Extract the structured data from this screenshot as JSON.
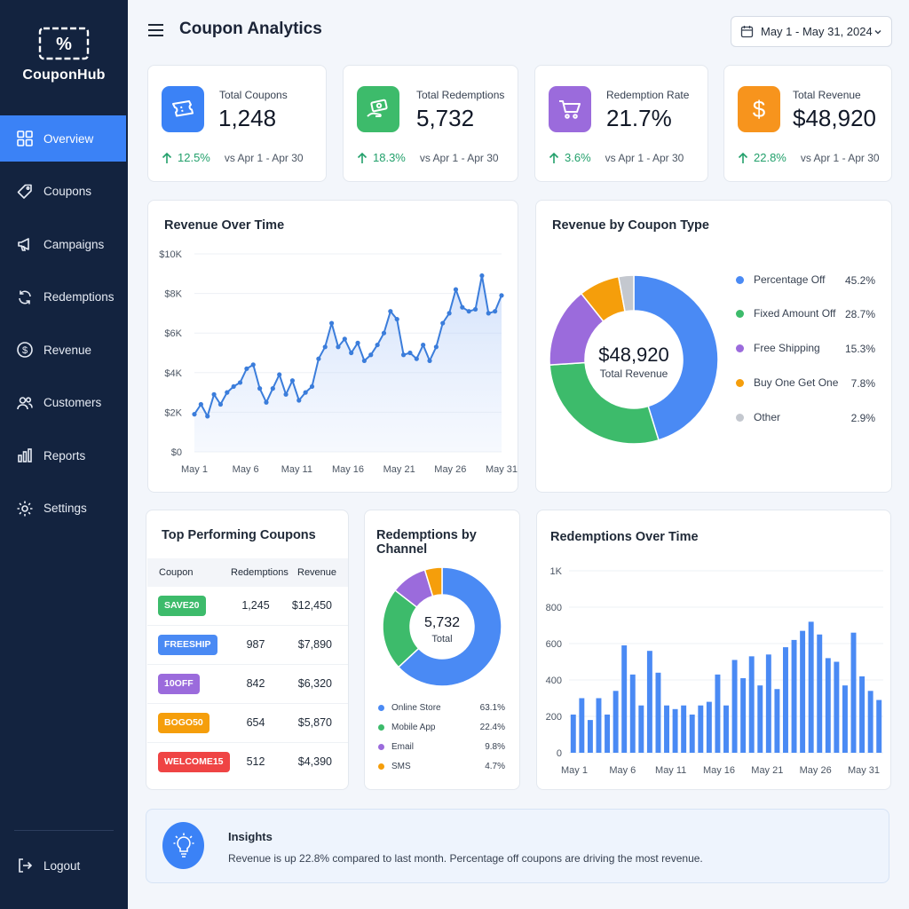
{
  "brand": {
    "logo_text": "%",
    "name": "CouponHub"
  },
  "sidebar": {
    "items": [
      {
        "label": "Overview",
        "icon": "grid-icon",
        "active": true
      },
      {
        "label": "Coupons",
        "icon": "tag-icon"
      },
      {
        "label": "Campaigns",
        "icon": "megaphone-icon"
      },
      {
        "label": "Redemptions",
        "icon": "refresh-icon"
      },
      {
        "label": "Revenue",
        "icon": "dollar-circle-icon"
      },
      {
        "label": "Customers",
        "icon": "users-icon"
      },
      {
        "label": "Reports",
        "icon": "bar-chart-icon"
      },
      {
        "label": "Settings",
        "icon": "gear-icon"
      }
    ],
    "logout_label": "Logout"
  },
  "header": {
    "title": "Coupon Analytics",
    "date_range": "May 1 - May 31, 2024"
  },
  "colors": {
    "sidebar": "#13233f",
    "accent": "#3b82f6",
    "green": "#3dbb6b",
    "purple": "#9b6bdc",
    "orange": "#f59e0b",
    "gray": "#c4c8cf",
    "positive": "#22a06b"
  },
  "kpis": [
    {
      "label": "Total Coupons",
      "value": "1,248",
      "change": "12.5%",
      "compare": "vs Apr 1 - Apr 30",
      "icon": "ticket-icon",
      "color": "#3b82f6"
    },
    {
      "label": "Total Redemptions",
      "value": "5,732",
      "change": "18.3%",
      "compare": "vs Apr 1 - Apr 30",
      "icon": "money-hand-icon",
      "color": "#3dbb6b"
    },
    {
      "label": "Redemption Rate",
      "value": "21.7%",
      "change": "3.6%",
      "compare": "vs Apr 1 - Apr 30",
      "icon": "cart-icon",
      "color": "#9b6bdc"
    },
    {
      "label": "Total Revenue",
      "value": "$48,920",
      "change": "22.8%",
      "compare": "vs Apr 1 - Apr 30",
      "icon": "dollar-icon",
      "color": "#f7941d"
    }
  ],
  "revenue_over_time": {
    "title": "Revenue Over Time"
  },
  "revenue_by_type": {
    "title": "Revenue by Coupon Type",
    "center_value": "$48,920",
    "center_label": "Total Revenue",
    "legend": [
      {
        "label": "Percentage Off",
        "value": "45.2%",
        "color": "#4a8af4"
      },
      {
        "label": "Fixed Amount Off",
        "value": "28.7%",
        "color": "#3dbb6b"
      },
      {
        "label": "Free Shipping",
        "value": "15.3%",
        "color": "#9b6bdc"
      },
      {
        "label": "Buy One Get One",
        "value": "7.8%",
        "color": "#f59e0b"
      },
      {
        "label": "Other",
        "value": "2.9%",
        "color": "#c4c8cf"
      }
    ]
  },
  "top_coupons": {
    "title": "Top Performing Coupons",
    "headers": [
      "Coupon",
      "Redemptions",
      "Revenue"
    ],
    "rows": [
      {
        "code": "SAVE20",
        "redemptions": "1,245",
        "revenue": "$12,450",
        "color": "#3dbb6b"
      },
      {
        "code": "FREESHIP",
        "redemptions": "987",
        "revenue": "$7,890",
        "color": "#4a8af4"
      },
      {
        "code": "10OFF",
        "redemptions": "842",
        "revenue": "$6,320",
        "color": "#9b6bdc"
      },
      {
        "code": "BOGO50",
        "redemptions": "654",
        "revenue": "$5,870",
        "color": "#f59e0b"
      },
      {
        "code": "WELCOME15",
        "redemptions": "512",
        "revenue": "$4,390",
        "color": "#ef4444"
      }
    ]
  },
  "redemptions_by_channel": {
    "title": "Redemptions by Channel",
    "center_value": "5,732",
    "center_label": "Total",
    "legend": [
      {
        "label": "Online Store",
        "value": "63.1%",
        "color": "#4a8af4"
      },
      {
        "label": "Mobile App",
        "value": "22.4%",
        "color": "#3dbb6b"
      },
      {
        "label": "Email",
        "value": "9.8%",
        "color": "#9b6bdc"
      },
      {
        "label": "SMS",
        "value": "4.7%",
        "color": "#f59e0b"
      }
    ]
  },
  "redemptions_over_time": {
    "title": "Redemptions Over Time"
  },
  "insights": {
    "title": "Insights",
    "text": "Revenue is up 22.8% compared to last month. Percentage off coupons are driving the most revenue."
  },
  "chart_data": [
    {
      "type": "line",
      "title": "Revenue Over Time",
      "x_ticks": [
        "May 1",
        "May 6",
        "May 11",
        "May 16",
        "May 21",
        "May 26",
        "May 31"
      ],
      "y_ticks": [
        "$0",
        "$2K",
        "$4K",
        "$6K",
        "$8K",
        "$10K"
      ],
      "ylim": [
        0,
        10000
      ],
      "grid": true,
      "values": [
        1900,
        2400,
        1800,
        2900,
        2400,
        3000,
        3300,
        3500,
        4200,
        4400,
        3200,
        2500,
        3200,
        3900,
        2900,
        3600,
        2600,
        3000,
        3300,
        4700,
        5300,
        6500,
        5300,
        5700,
        5000,
        5500,
        4600,
        4900,
        5400,
        6000,
        7100,
        6700,
        4900,
        5000,
        4700,
        5400,
        4600,
        5300,
        6500,
        7000,
        8200,
        7300,
        7100,
        7200,
        8900,
        7000,
        7100,
        7900
      ]
    },
    {
      "type": "pie",
      "title": "Revenue by Coupon Type",
      "labels": [
        "Percentage Off",
        "Fixed Amount Off",
        "Free Shipping",
        "Buy One Get One",
        "Other"
      ],
      "values": [
        45.2,
        28.7,
        15.3,
        7.8,
        2.9
      ]
    },
    {
      "type": "pie",
      "title": "Redemptions by Channel",
      "labels": [
        "Online Store",
        "Mobile App",
        "Email",
        "SMS"
      ],
      "values": [
        63.1,
        22.4,
        9.8,
        4.7
      ]
    },
    {
      "type": "bar",
      "title": "Redemptions Over Time",
      "x_ticks": [
        "May 1",
        "May 6",
        "May 11",
        "May 16",
        "May 21",
        "May 26",
        "May 31"
      ],
      "y_ticks": [
        "0",
        "200",
        "400",
        "600",
        "800",
        "1K"
      ],
      "ylim": [
        0,
        1000
      ],
      "grid": true,
      "values": [
        210,
        300,
        180,
        300,
        210,
        340,
        590,
        430,
        260,
        560,
        440,
        260,
        240,
        260,
        210,
        260,
        280,
        430,
        260,
        510,
        410,
        530,
        370,
        540,
        350,
        580,
        620,
        670,
        720,
        650,
        520,
        500,
        370,
        660,
        420,
        340,
        290
      ]
    }
  ]
}
